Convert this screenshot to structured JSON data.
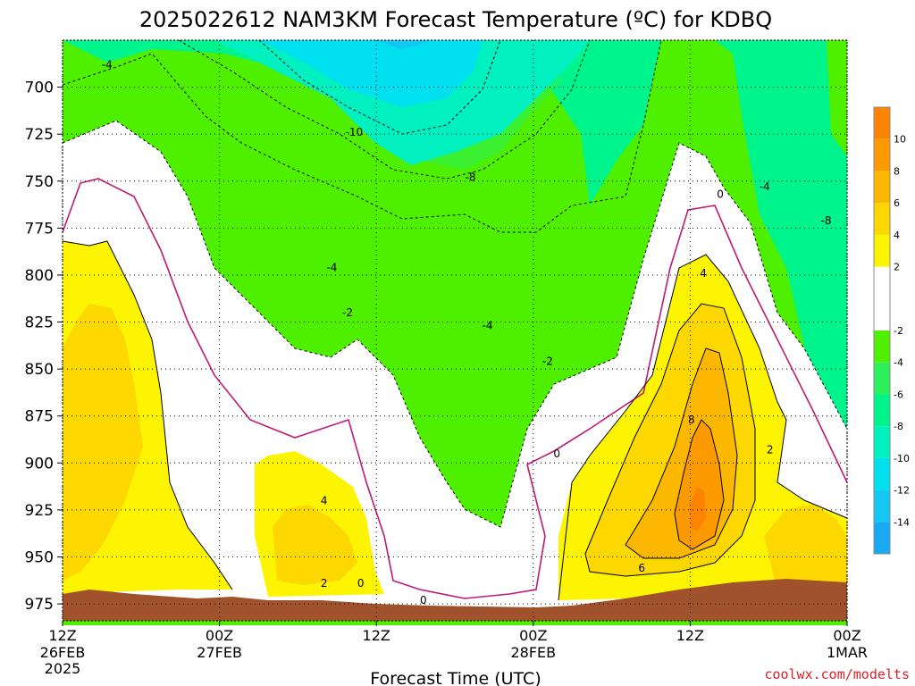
{
  "chart_data": {
    "type": "heatmap",
    "title": "2025022612 NAM3KM Forecast Temperature (ºC) for KDBQ",
    "xlabel": "Forecast Time (UTC)",
    "credit": "coolwx.com/modelts",
    "y_axis": {
      "ticks": [
        700,
        725,
        750,
        775,
        800,
        825,
        850,
        875,
        900,
        925,
        950,
        975
      ],
      "units": "hPa",
      "range": [
        675,
        984
      ],
      "inverted": true
    },
    "x_axis": {
      "ticks": [
        {
          "label": "12Z",
          "sub": "26FEB",
          "sub2": "2025",
          "hour": 0
        },
        {
          "label": "00Z",
          "sub": "27FEB",
          "sub2": "",
          "hour": 12
        },
        {
          "label": "12Z",
          "sub": "",
          "sub2": "",
          "hour": 24
        },
        {
          "label": "00Z",
          "sub": "28FEB",
          "sub2": "",
          "hour": 36
        },
        {
          "label": "12Z",
          "sub": "",
          "sub2": "",
          "hour": 48
        },
        {
          "label": "00Z",
          "sub": "1MAR",
          "sub2": "",
          "hour": 60
        }
      ],
      "range_hours": [
        0,
        60
      ]
    },
    "grid": true,
    "colorbar": {
      "placement": "right",
      "bins": [
        {
          "from": -16,
          "to": -14,
          "color": "#17a9f3"
        },
        {
          "from": -14,
          "to": -12,
          "color": "#12c7f2"
        },
        {
          "from": -12,
          "to": -10,
          "color": "#00e0ee"
        },
        {
          "from": -10,
          "to": -8,
          "color": "#00f0c0"
        },
        {
          "from": -8,
          "to": -6,
          "color": "#00f48c"
        },
        {
          "from": -6,
          "to": -4,
          "color": "#2af05a"
        },
        {
          "from": -4,
          "to": -2,
          "color": "#4ef000"
        },
        {
          "from": -2,
          "to": 2,
          "color": "#ffffff"
        },
        {
          "from": 2,
          "to": 4,
          "color": "#fcf400"
        },
        {
          "from": 4,
          "to": 6,
          "color": "#fcd800"
        },
        {
          "from": 6,
          "to": 8,
          "color": "#fcb800"
        },
        {
          "from": 8,
          "to": 10,
          "color": "#fc9a00"
        },
        {
          "from": 10,
          "to": 12,
          "color": "#fc8400"
        }
      ],
      "labels": [
        10,
        8,
        6,
        4,
        2,
        -2,
        -4,
        -6,
        -8,
        -10,
        -12,
        -14
      ]
    },
    "contour_labels": [
      {
        "text": "-4",
        "hour": 3.4,
        "p": 688
      },
      {
        "text": "-10",
        "hour": 22.3,
        "p": 724
      },
      {
        "text": "-8",
        "hour": 31.2,
        "p": 748
      },
      {
        "text": "-4",
        "hour": 20.6,
        "p": 796
      },
      {
        "text": "-2",
        "hour": 21.8,
        "p": 820
      },
      {
        "text": "-4",
        "hour": 32.5,
        "p": 827
      },
      {
        "text": "-2",
        "hour": 37.1,
        "p": 846
      },
      {
        "text": "0",
        "hour": 37.8,
        "p": 895
      },
      {
        "text": "0",
        "hour": 50.3,
        "p": 757
      },
      {
        "text": "-4",
        "hour": 53.7,
        "p": 753
      },
      {
        "text": "-8",
        "hour": 58.4,
        "p": 771
      },
      {
        "text": "4",
        "hour": 49.0,
        "p": 799
      },
      {
        "text": "8",
        "hour": 48.1,
        "p": 877
      },
      {
        "text": "2",
        "hour": 54.1,
        "p": 893
      },
      {
        "text": "4",
        "hour": 20.0,
        "p": 920
      },
      {
        "text": "2",
        "hour": 20.0,
        "p": 964
      },
      {
        "text": "0",
        "hour": 22.8,
        "p": 964
      },
      {
        "text": "0",
        "hour": 27.6,
        "p": 973
      },
      {
        "text": "6",
        "hour": 44.3,
        "p": 956
      }
    ]
  }
}
